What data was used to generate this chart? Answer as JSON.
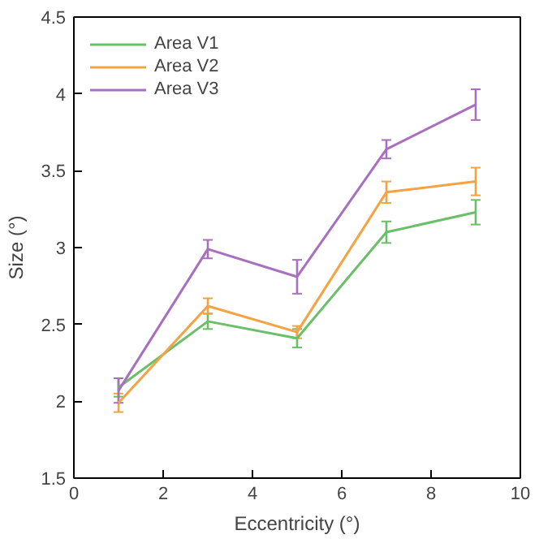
{
  "chart_data": {
    "type": "line",
    "xlabel": "Eccentricity (°)",
    "ylabel": "Size (°)",
    "x": [
      1,
      3,
      5,
      7,
      9
    ],
    "xlim": [
      0,
      10
    ],
    "xticks": [
      0,
      2,
      4,
      6,
      8,
      10
    ],
    "ylim": [
      1.5,
      4.5
    ],
    "yticks": [
      1.5,
      2,
      2.5,
      3,
      3.5,
      4,
      4.5
    ],
    "grid": false,
    "legend": "top left",
    "marker": "none",
    "line_style": "solid",
    "series": [
      {
        "name": "Area V1",
        "color": "#6abf69",
        "values": [
          2.09,
          2.52,
          2.41,
          3.1,
          3.23
        ],
        "errors": [
          0.06,
          0.05,
          0.06,
          0.07,
          0.08
        ]
      },
      {
        "name": "Area V2",
        "color": "#f5a243",
        "values": [
          1.99,
          2.62,
          2.45,
          3.36,
          3.43
        ],
        "errors": [
          0.06,
          0.05,
          0.04,
          0.07,
          0.09
        ]
      },
      {
        "name": "Area V3",
        "color": "#a86fbf",
        "values": [
          2.07,
          2.99,
          2.81,
          3.64,
          3.93
        ],
        "errors": [
          0.08,
          0.06,
          0.11,
          0.06,
          0.1
        ]
      }
    ]
  }
}
